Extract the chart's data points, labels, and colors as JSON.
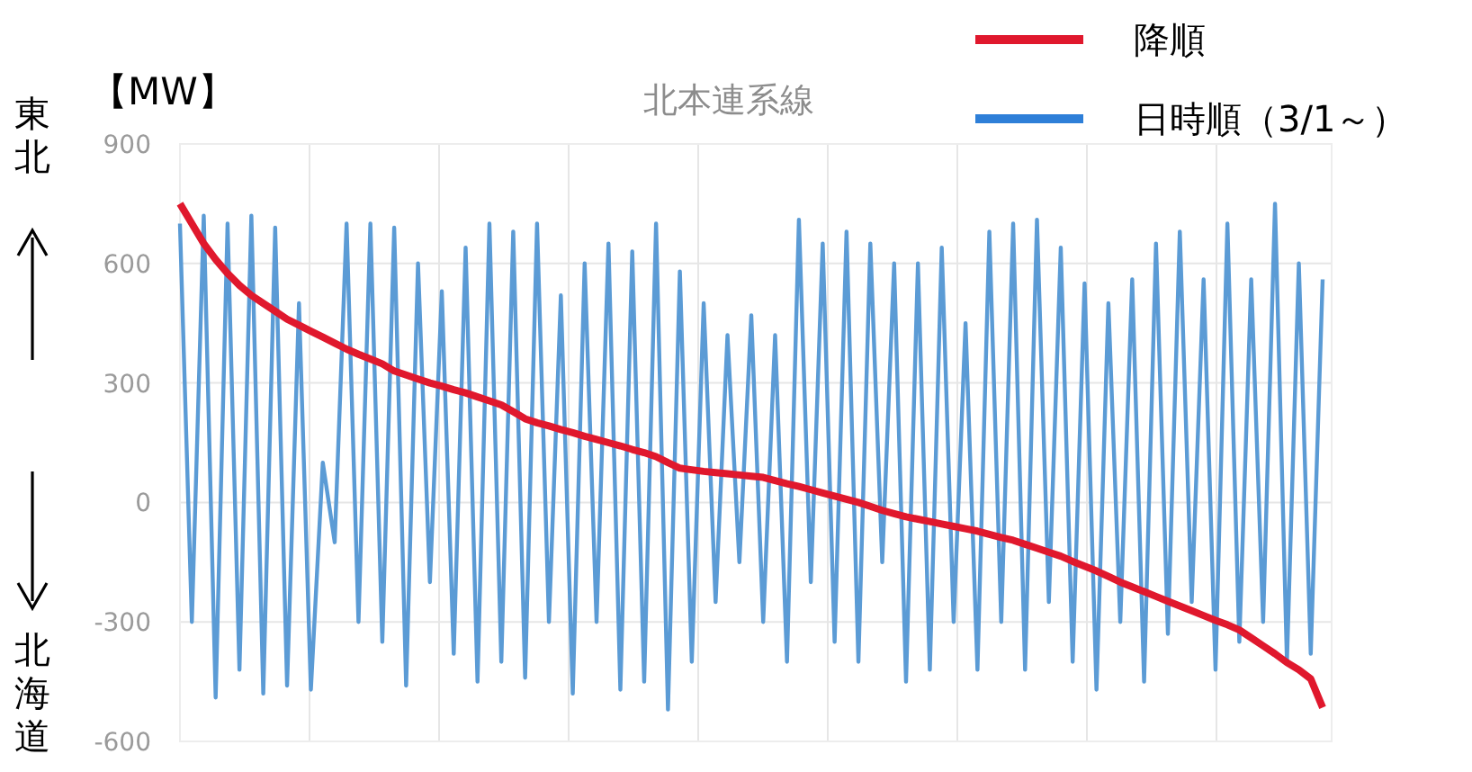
{
  "chart_data": {
    "type": "line",
    "title": "北本連系線",
    "ylabel": "【MW】",
    "annotations": [
      "東北",
      "北海道"
    ],
    "categories": [
      null,
      null,
      null,
      null,
      null,
      null,
      null,
      null,
      null,
      null,
      null,
      null,
      null,
      null,
      null,
      null,
      null,
      null,
      null,
      null,
      null,
      null,
      null,
      null,
      null,
      null,
      null,
      null,
      null,
      null,
      null,
      null,
      null,
      null,
      null,
      null,
      null,
      null,
      null,
      null,
      null,
      null,
      null,
      null,
      null,
      null,
      null,
      null,
      null,
      null,
      null,
      null,
      null,
      null,
      null,
      null,
      null,
      null,
      null,
      null,
      null,
      null,
      null,
      null,
      null,
      null,
      null,
      null,
      null,
      null,
      null,
      null,
      null,
      null,
      null,
      null,
      null,
      null,
      null,
      null,
      null,
      null,
      null,
      null,
      null,
      null,
      null,
      null,
      null,
      null,
      null,
      null,
      null,
      null,
      null,
      null,
      null
    ],
    "series": [
      {
        "name": "日時順（3/1～）",
        "color": "#5b9bd5",
        "values": [
          700,
          -300,
          720,
          -490,
          700,
          -420,
          720,
          -480,
          690,
          -460,
          500,
          -470,
          100,
          -100,
          700,
          -300,
          700,
          -350,
          690,
          -460,
          600,
          -200,
          530,
          -380,
          640,
          -450,
          700,
          -400,
          680,
          -440,
          700,
          -300,
          520,
          -480,
          600,
          -300,
          650,
          -470,
          630,
          -450,
          700,
          -520,
          580,
          -400,
          500,
          -250,
          420,
          -150,
          470,
          -300,
          420,
          -400,
          710,
          -200,
          650,
          -350,
          680,
          -400,
          650,
          -150,
          600,
          -450,
          600,
          -420,
          640,
          -300,
          450,
          -420,
          680,
          -300,
          700,
          -420,
          710,
          -250,
          640,
          -400,
          550,
          -470,
          500,
          -300,
          560,
          -450,
          650,
          -330,
          680,
          -250,
          560,
          -420,
          700,
          -350,
          560,
          -300,
          750,
          -400,
          600,
          -380,
          560
        ]
      },
      {
        "name": "降順",
        "color": "#e0182d",
        "values": [
          750,
          700,
          650,
          610,
          575,
          545,
          520,
          500,
          480,
          460,
          445,
          430,
          415,
          400,
          385,
          372,
          360,
          348,
          330,
          320,
          310,
          300,
          292,
          283,
          275,
          265,
          255,
          245,
          228,
          210,
          200,
          192,
          183,
          175,
          166,
          158,
          150,
          142,
          133,
          125,
          115,
          100,
          86,
          82,
          78,
          75,
          72,
          69,
          66,
          63,
          55,
          47,
          40,
          32,
          24,
          16,
          8,
          0,
          -10,
          -20,
          -28,
          -36,
          -42,
          -48,
          -54,
          -60,
          -66,
          -72,
          -80,
          -88,
          -95,
          -105,
          -115,
          -125,
          -135,
          -148,
          -160,
          -172,
          -186,
          -200,
          -212,
          -224,
          -236,
          -248,
          -260,
          -272,
          -284,
          -296,
          -307,
          -320,
          -340,
          -360,
          -380,
          -402,
          -420,
          -443,
          -515
        ]
      }
    ],
    "ylim": [
      -600,
      900
    ],
    "yticks": [
      -600,
      -300,
      0,
      300,
      600,
      900
    ],
    "grid": true,
    "legend": "top right",
    "marker": "none",
    "line_style": "solid"
  }
}
